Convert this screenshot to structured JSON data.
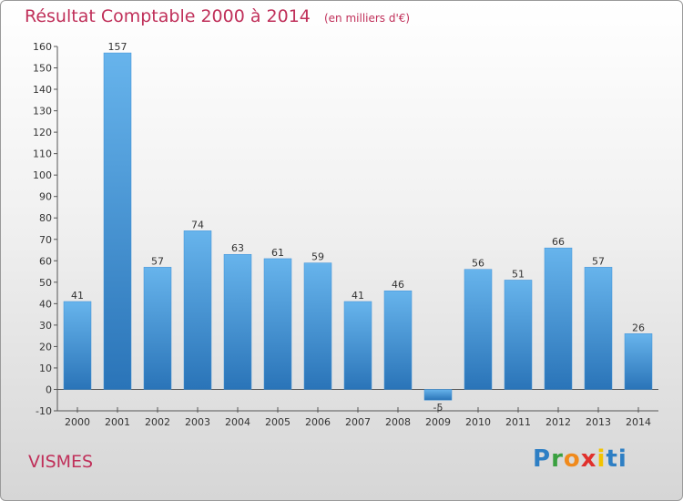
{
  "chart_data": {
    "type": "bar",
    "title": "Résultat Comptable 2000 à 2014",
    "unit_note": "(en milliers d'€)",
    "categories": [
      "2000",
      "2001",
      "2002",
      "2003",
      "2004",
      "2005",
      "2006",
      "2007",
      "2008",
      "2009",
      "2010",
      "2011",
      "2012",
      "2013",
      "2014"
    ],
    "values": [
      41,
      157,
      57,
      74,
      63,
      61,
      59,
      41,
      46,
      -5,
      56,
      51,
      66,
      57,
      26
    ],
    "ylim": [
      -10,
      160
    ],
    "yticks": [
      -10,
      0,
      10,
      20,
      30,
      40,
      50,
      60,
      70,
      80,
      90,
      100,
      110,
      120,
      130,
      140,
      150,
      160
    ],
    "grid": false,
    "bar_color": "#3d8fd6",
    "bar_color_light": "#67b4ec",
    "bar_color_dark": "#2a74b8"
  },
  "footer": {
    "town": "VISMES",
    "brand": [
      "P",
      "r",
      "o",
      "x",
      "i",
      "ti"
    ]
  }
}
